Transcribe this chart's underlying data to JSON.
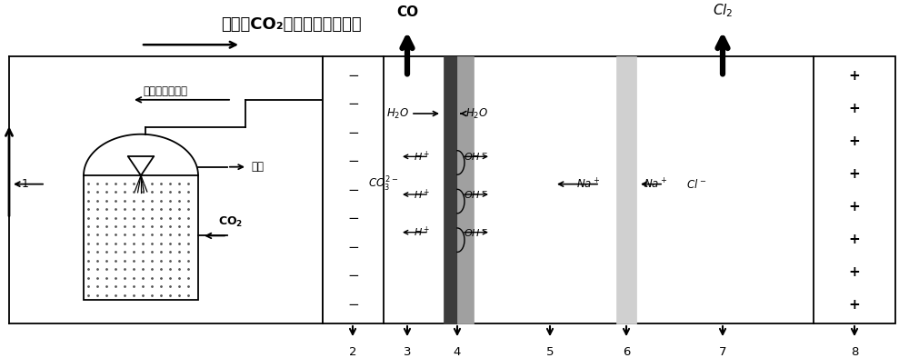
{
  "title": "含大量CO₂的有机复合电解液",
  "electrolyte_label": "有机复合电解液",
  "tail_gas": "尾气",
  "bg_color": "#ffffff"
}
